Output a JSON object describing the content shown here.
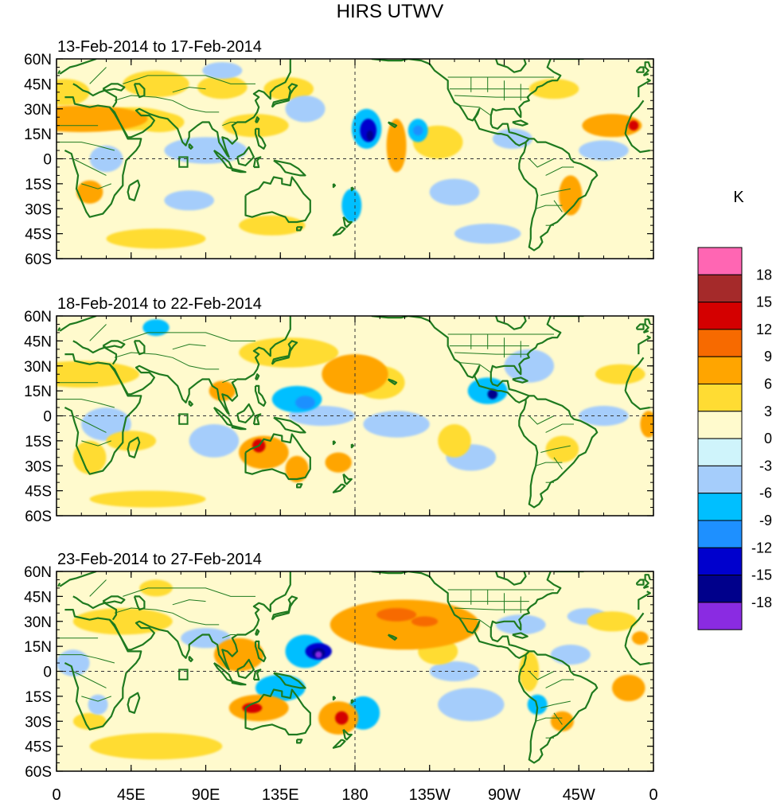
{
  "title": "HIRS UTWV",
  "panels": [
    {
      "label": "13-Feb-2014 to 17-Feb-2014",
      "anomalies": [
        {
          "lon": 15,
          "lat": 24,
          "value": 7,
          "rx": 40,
          "ry": 8
        },
        {
          "lon": 45,
          "lat": 24,
          "value": 6,
          "rx": 25,
          "ry": 7
        },
        {
          "lon": 62,
          "lat": 22,
          "value": 6,
          "rx": 15,
          "ry": 6
        },
        {
          "lon": 120,
          "lat": 20,
          "value": 6,
          "rx": 20,
          "ry": 7
        },
        {
          "lon": 20,
          "lat": -20,
          "value": 7,
          "rx": 8,
          "ry": 7
        },
        {
          "lon": 5,
          "lat": 40,
          "value": 4,
          "rx": 15,
          "ry": 8
        },
        {
          "lon": 60,
          "lat": 45,
          "value": 4,
          "rx": 20,
          "ry": 8
        },
        {
          "lon": 100,
          "lat": 43,
          "value": 5,
          "rx": 15,
          "ry": 7
        },
        {
          "lon": 140,
          "lat": 42,
          "value": 4,
          "rx": 15,
          "ry": 7
        },
        {
          "lon": 130,
          "lat": -40,
          "value": 4,
          "rx": 20,
          "ry": 6
        },
        {
          "lon": 60,
          "lat": -48,
          "value": 5,
          "rx": 30,
          "ry": 6
        },
        {
          "lon": 205,
          "lat": 8,
          "value": 7,
          "rx": 6,
          "ry": 16
        },
        {
          "lon": 300,
          "lat": 42,
          "value": 5,
          "rx": 15,
          "ry": 6
        },
        {
          "lon": 335,
          "lat": 20,
          "value": 7,
          "rx": 18,
          "ry": 7
        },
        {
          "lon": 348,
          "lat": 20,
          "value": 13,
          "rx": 3,
          "ry": 3
        },
        {
          "lon": 310,
          "lat": -22,
          "value": 7,
          "rx": 7,
          "ry": 12
        },
        {
          "lon": 230,
          "lat": 10,
          "value": 4,
          "rx": 15,
          "ry": 10
        },
        {
          "lon": 185,
          "lat": -10,
          "value": 3,
          "rx": 20,
          "ry": 12
        },
        {
          "lon": 187,
          "lat": 18,
          "value": -8,
          "rx": 9,
          "ry": 12
        },
        {
          "lon": 188,
          "lat": 17,
          "value": -13,
          "rx": 5,
          "ry": 7
        },
        {
          "lon": 189,
          "lat": 14,
          "value": -16,
          "rx": 2,
          "ry": 3
        },
        {
          "lon": 218,
          "lat": 17,
          "value": -8,
          "rx": 6,
          "ry": 7
        },
        {
          "lon": 218,
          "lat": 17,
          "value": -11,
          "rx": 3,
          "ry": 3
        },
        {
          "lon": 178,
          "lat": -28,
          "value": -6,
          "rx": 6,
          "ry": 10
        },
        {
          "lon": 240,
          "lat": -20,
          "value": -4,
          "rx": 15,
          "ry": 8
        },
        {
          "lon": 90,
          "lat": 5,
          "value": -3,
          "rx": 25,
          "ry": 8
        },
        {
          "lon": 30,
          "lat": 0,
          "value": -4,
          "rx": 10,
          "ry": 8
        },
        {
          "lon": 100,
          "lat": 53,
          "value": -5,
          "rx": 12,
          "ry": 5
        },
        {
          "lon": 150,
          "lat": 30,
          "value": -4,
          "rx": 12,
          "ry": 8
        },
        {
          "lon": 275,
          "lat": 12,
          "value": -4,
          "rx": 12,
          "ry": 6
        },
        {
          "lon": 330,
          "lat": 5,
          "value": -3,
          "rx": 15,
          "ry": 6
        },
        {
          "lon": 80,
          "lat": -25,
          "value": -3,
          "rx": 15,
          "ry": 6
        },
        {
          "lon": 260,
          "lat": -45,
          "value": -3,
          "rx": 20,
          "ry": 6
        }
      ]
    },
    {
      "label": "18-Feb-2014 to 22-Feb-2014",
      "anomalies": [
        {
          "lon": 15,
          "lat": 25,
          "value": 6,
          "rx": 35,
          "ry": 8
        },
        {
          "lon": 100,
          "lat": 15,
          "value": 7,
          "rx": 8,
          "ry": 6
        },
        {
          "lon": 140,
          "lat": 38,
          "value": 6,
          "rx": 30,
          "ry": 9
        },
        {
          "lon": 180,
          "lat": 25,
          "value": 7,
          "rx": 20,
          "ry": 12
        },
        {
          "lon": 195,
          "lat": 20,
          "value": 5,
          "rx": 15,
          "ry": 10
        },
        {
          "lon": 125,
          "lat": -22,
          "value": 7,
          "rx": 15,
          "ry": 10
        },
        {
          "lon": 122,
          "lat": -18,
          "value": 13,
          "rx": 4,
          "ry": 4
        },
        {
          "lon": 145,
          "lat": -32,
          "value": 7,
          "rx": 7,
          "ry": 8
        },
        {
          "lon": 170,
          "lat": -28,
          "value": 7,
          "rx": 8,
          "ry": 6
        },
        {
          "lon": 45,
          "lat": -15,
          "value": 5,
          "rx": 15,
          "ry": 6
        },
        {
          "lon": 20,
          "lat": -25,
          "value": 4,
          "rx": 10,
          "ry": 10
        },
        {
          "lon": 55,
          "lat": -50,
          "value": 4,
          "rx": 35,
          "ry": 5
        },
        {
          "lon": 240,
          "lat": -15,
          "value": 6,
          "rx": 10,
          "ry": 10
        },
        {
          "lon": 305,
          "lat": -20,
          "value": 6,
          "rx": 10,
          "ry": 8
        },
        {
          "lon": 357,
          "lat": -5,
          "value": 8,
          "rx": 5,
          "ry": 8
        },
        {
          "lon": 340,
          "lat": 25,
          "value": 4,
          "rx": 15,
          "ry": 6
        },
        {
          "lon": 145,
          "lat": 10,
          "value": -7,
          "rx": 15,
          "ry": 8
        },
        {
          "lon": 150,
          "lat": 8,
          "value": -10,
          "rx": 6,
          "ry": 4
        },
        {
          "lon": 260,
          "lat": 15,
          "value": -8,
          "rx": 12,
          "ry": 8
        },
        {
          "lon": 263,
          "lat": 13,
          "value": -15,
          "rx": 3,
          "ry": 3
        },
        {
          "lon": 285,
          "lat": 30,
          "value": -5,
          "rx": 15,
          "ry": 10
        },
        {
          "lon": 250,
          "lat": -25,
          "value": -5,
          "rx": 15,
          "ry": 8
        },
        {
          "lon": 60,
          "lat": 53,
          "value": -6,
          "rx": 8,
          "ry": 5
        },
        {
          "lon": 30,
          "lat": -5,
          "value": -4,
          "rx": 15,
          "ry": 10
        },
        {
          "lon": 95,
          "lat": -15,
          "value": -4,
          "rx": 15,
          "ry": 10
        },
        {
          "lon": 160,
          "lat": 0,
          "value": -3,
          "rx": 20,
          "ry": 6
        },
        {
          "lon": 205,
          "lat": -5,
          "value": -3,
          "rx": 20,
          "ry": 8
        },
        {
          "lon": 330,
          "lat": 0,
          "value": -3,
          "rx": 15,
          "ry": 6
        },
        {
          "lon": 100,
          "lat": 45,
          "value": 3,
          "rx": 20,
          "ry": 6
        }
      ]
    },
    {
      "label": "23-Feb-2014 to 27-Feb-2014",
      "anomalies": [
        {
          "lon": 210,
          "lat": 28,
          "value": 7,
          "rx": 45,
          "ry": 15
        },
        {
          "lon": 205,
          "lat": 34,
          "value": 11,
          "rx": 12,
          "ry": 4
        },
        {
          "lon": 222,
          "lat": 30,
          "value": 11,
          "rx": 8,
          "ry": 3
        },
        {
          "lon": 110,
          "lat": 10,
          "value": 7,
          "rx": 15,
          "ry": 10
        },
        {
          "lon": 230,
          "lat": 12,
          "value": 6,
          "rx": 12,
          "ry": 8
        },
        {
          "lon": 122,
          "lat": -22,
          "value": 8,
          "rx": 18,
          "ry": 8
        },
        {
          "lon": 118,
          "lat": -22,
          "value": 13,
          "rx": 6,
          "ry": 3
        },
        {
          "lon": 170,
          "lat": -28,
          "value": 8,
          "rx": 12,
          "ry": 10
        },
        {
          "lon": 172,
          "lat": -28,
          "value": 14,
          "rx": 4,
          "ry": 4
        },
        {
          "lon": 335,
          "lat": 30,
          "value": 6,
          "rx": 15,
          "ry": 6
        },
        {
          "lon": 352,
          "lat": 20,
          "value": 9,
          "rx": 5,
          "ry": 4
        },
        {
          "lon": 345,
          "lat": -10,
          "value": 7,
          "rx": 10,
          "ry": 8
        },
        {
          "lon": 285,
          "lat": 0,
          "value": 6,
          "rx": 6,
          "ry": 12
        },
        {
          "lon": 305,
          "lat": -30,
          "value": 7,
          "rx": 7,
          "ry": 6
        },
        {
          "lon": 40,
          "lat": 30,
          "value": 4,
          "rx": 30,
          "ry": 8
        },
        {
          "lon": 60,
          "lat": -45,
          "value": 4,
          "rx": 40,
          "ry": 8
        },
        {
          "lon": 20,
          "lat": -30,
          "value": 5,
          "rx": 10,
          "ry": 5
        },
        {
          "lon": 60,
          "lat": 50,
          "value": 5,
          "rx": 10,
          "ry": 5
        },
        {
          "lon": 150,
          "lat": 12,
          "value": -8,
          "rx": 12,
          "ry": 10
        },
        {
          "lon": 158,
          "lat": 12,
          "value": -13,
          "rx": 8,
          "ry": 5
        },
        {
          "lon": 158,
          "lat": 11,
          "value": -16,
          "rx": 4,
          "ry": 3
        },
        {
          "lon": 158,
          "lat": 10,
          "value": -19,
          "rx": 2,
          "ry": 2
        },
        {
          "lon": 135,
          "lat": -10,
          "value": -6,
          "rx": 15,
          "ry": 8
        },
        {
          "lon": 185,
          "lat": -25,
          "value": -6,
          "rx": 10,
          "ry": 10
        },
        {
          "lon": 25,
          "lat": -20,
          "value": -5,
          "rx": 6,
          "ry": 6
        },
        {
          "lon": 10,
          "lat": 5,
          "value": -4,
          "rx": 10,
          "ry": 8
        },
        {
          "lon": 90,
          "lat": 20,
          "value": -4,
          "rx": 15,
          "ry": 6
        },
        {
          "lon": 290,
          "lat": -20,
          "value": -7,
          "rx": 6,
          "ry": 6
        },
        {
          "lon": 280,
          "lat": 28,
          "value": -5,
          "rx": 15,
          "ry": 6
        },
        {
          "lon": 320,
          "lat": 33,
          "value": -5,
          "rx": 12,
          "ry": 5
        },
        {
          "lon": 240,
          "lat": 0,
          "value": -4,
          "rx": 15,
          "ry": 6
        },
        {
          "lon": 310,
          "lat": 10,
          "value": -3,
          "rx": 12,
          "ry": 6
        },
        {
          "lon": 250,
          "lat": -20,
          "value": -3,
          "rx": 20,
          "ry": 10
        }
      ]
    }
  ],
  "lat_ticks": [
    {
      "value": 60,
      "label": "60N"
    },
    {
      "value": 45,
      "label": "45N"
    },
    {
      "value": 30,
      "label": "30N"
    },
    {
      "value": 15,
      "label": "15N"
    },
    {
      "value": 0,
      "label": "0"
    },
    {
      "value": -15,
      "label": "15S"
    },
    {
      "value": -30,
      "label": "30S"
    },
    {
      "value": -45,
      "label": "45S"
    },
    {
      "value": -60,
      "label": "60S"
    }
  ],
  "lon_ticks": [
    {
      "value": 0,
      "label": "0"
    },
    {
      "value": 45,
      "label": "45E"
    },
    {
      "value": 90,
      "label": "90E"
    },
    {
      "value": 135,
      "label": "135E"
    },
    {
      "value": 180,
      "label": "180"
    },
    {
      "value": 225,
      "label": "135W"
    },
    {
      "value": 270,
      "label": "90W"
    },
    {
      "value": 315,
      "label": "45W"
    },
    {
      "value": 360,
      "label": "0"
    }
  ],
  "colorbar": {
    "unit": "K",
    "labels": [
      "18",
      "15",
      "12",
      "9",
      "6",
      "3",
      "0",
      "-3",
      "-6",
      "-9",
      "-12",
      "-15",
      "-18"
    ],
    "colors_top_to_bottom": [
      "#ff66b3",
      "#a52a2a",
      "#d40000",
      "#f76a00",
      "#ffa500",
      "#ffdc33",
      "#fffacd",
      "#cff4fb",
      "#a5cdfb",
      "#00bfff",
      "#1e90ff",
      "#0000cd",
      "#00008b",
      "#8a2be2"
    ]
  },
  "colors": {
    "coast": "#1f7a1f",
    "background": "#fffacd",
    "frame": "#000000"
  }
}
